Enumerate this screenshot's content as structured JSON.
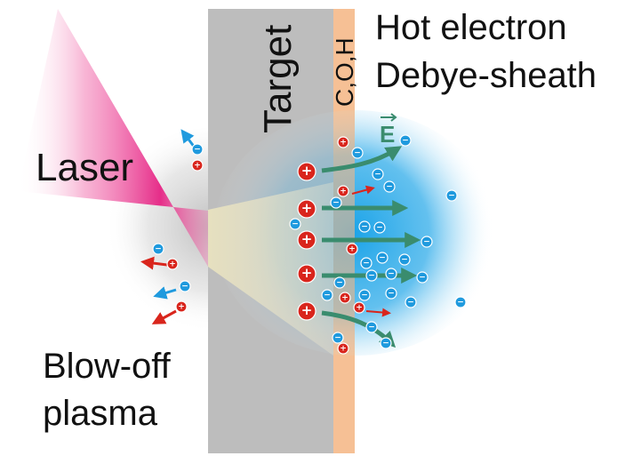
{
  "labels": {
    "laser": "Laser",
    "target": "Target",
    "contaminant_layer": "C,O,H",
    "sheath_line1": "Hot electron",
    "sheath_line2": "Debye-sheath",
    "field": "E",
    "blowoff_line1": "Blow-off",
    "blowoff_line2": "plasma"
  },
  "particles": {
    "ion_symbol": "+",
    "electron_symbol": "−"
  },
  "colors": {
    "laser": "#e6197f",
    "target": "#bdbdbd",
    "contaminant_layer": "#f5b98a",
    "sheath_glow": "#1aa3e8",
    "ion": "#d9251c",
    "electron": "#1f9ade",
    "field_arrow": "#3a8c6e",
    "hot_electron_cone": "#e9e3c6"
  }
}
